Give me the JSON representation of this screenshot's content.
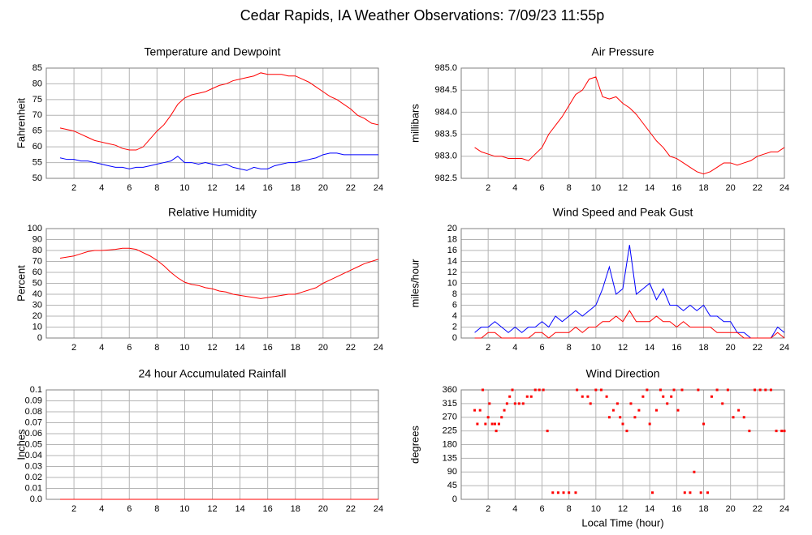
{
  "title": "Cedar Rapids, IA Weather Observations: 7/09/23 11:55p",
  "chart_data": [
    {
      "type": "line",
      "title": "Temperature and Dewpoint",
      "ylabel": "Fahrenheit",
      "xlim": [
        0,
        24
      ],
      "xticks": [
        2,
        4,
        6,
        8,
        10,
        12,
        14,
        16,
        18,
        20,
        22,
        24
      ],
      "ylim": [
        50,
        85
      ],
      "yticks": [
        50,
        55,
        60,
        65,
        70,
        75,
        80,
        85
      ],
      "grid": true,
      "x": [
        1,
        1.5,
        2,
        2.5,
        3,
        3.5,
        4,
        4.5,
        5,
        5.5,
        6,
        6.5,
        7,
        7.5,
        8,
        8.5,
        9,
        9.5,
        10,
        10.5,
        11,
        11.5,
        12,
        12.5,
        13,
        13.5,
        14,
        14.5,
        15,
        15.5,
        16,
        16.5,
        17,
        17.5,
        18,
        18.5,
        19,
        19.5,
        20,
        20.5,
        21,
        21.5,
        22,
        22.5,
        23,
        23.5,
        24
      ],
      "series": [
        {
          "color": "#ff0000",
          "values": [
            66,
            65.5,
            65,
            64,
            63,
            62,
            61.5,
            61,
            60.5,
            59.5,
            59,
            59,
            60,
            62.5,
            65,
            67,
            70,
            73.5,
            75.5,
            76.5,
            77,
            77.5,
            78.5,
            79.5,
            80,
            81,
            81.5,
            82,
            82.5,
            83.5,
            83,
            83,
            83,
            82.5,
            82.5,
            81.5,
            80.5,
            79,
            77.5,
            76,
            75,
            73.5,
            72,
            70,
            69,
            67.5,
            67
          ]
        },
        {
          "color": "#0000ff",
          "values": [
            56.5,
            56,
            56,
            55.5,
            55.5,
            55,
            54.5,
            54,
            53.5,
            53.5,
            53,
            53.5,
            53.5,
            54,
            54.5,
            55,
            55.5,
            57,
            55,
            55,
            54.5,
            55,
            54.5,
            54,
            54.5,
            53.5,
            53,
            52.5,
            53.5,
            53,
            53,
            54,
            54.5,
            55,
            55,
            55.5,
            56,
            56.5,
            57.5,
            58,
            58,
            57.5,
            57.5,
            57.5,
            57.5,
            57.5,
            57.5
          ]
        }
      ]
    },
    {
      "type": "line",
      "title": "Air Pressure",
      "ylabel": "millibars",
      "xlim": [
        0,
        24
      ],
      "xticks": [
        2,
        4,
        6,
        8,
        10,
        12,
        14,
        16,
        18,
        20,
        22,
        24
      ],
      "ylim": [
        982.5,
        985
      ],
      "yticks": [
        982.5,
        {
          "value": 983,
          "label": "983.0"
        },
        983.5,
        {
          "value": 984,
          "label": "984.0"
        },
        984.5,
        {
          "value": 985,
          "label": "985.0"
        }
      ],
      "grid": true,
      "x": [
        1,
        1.5,
        2,
        2.5,
        3,
        3.5,
        4,
        4.5,
        5,
        5.5,
        6,
        6.5,
        7,
        7.5,
        8,
        8.5,
        9,
        9.5,
        10,
        10.5,
        11,
        11.5,
        12,
        12.5,
        13,
        13.5,
        14,
        14.5,
        15,
        15.5,
        16,
        16.5,
        17,
        17.5,
        18,
        18.5,
        19,
        19.5,
        20,
        20.5,
        21,
        21.5,
        22,
        22.5,
        23,
        23.5,
        24
      ],
      "series": [
        {
          "color": "#ff0000",
          "values": [
            983.2,
            983.1,
            983.05,
            983.0,
            983.0,
            982.95,
            982.95,
            982.95,
            982.9,
            983.05,
            983.2,
            983.5,
            983.7,
            983.9,
            984.15,
            984.4,
            984.5,
            984.75,
            984.8,
            984.35,
            984.3,
            984.35,
            984.2,
            984.1,
            983.95,
            983.75,
            983.55,
            983.35,
            983.2,
            983.0,
            982.95,
            982.85,
            982.75,
            982.65,
            982.6,
            982.65,
            982.75,
            982.85,
            982.85,
            982.8,
            982.85,
            982.9,
            983.0,
            983.05,
            983.1,
            983.1,
            983.2
          ]
        }
      ]
    },
    {
      "type": "line",
      "title": "Relative Humidity",
      "ylabel": "Percent",
      "xlim": [
        0,
        24
      ],
      "xticks": [
        2,
        4,
        6,
        8,
        10,
        12,
        14,
        16,
        18,
        20,
        22,
        24
      ],
      "ylim": [
        0,
        100
      ],
      "yticks": [
        0,
        10,
        20,
        30,
        40,
        50,
        60,
        70,
        80,
        90,
        100
      ],
      "grid": true,
      "x": [
        1,
        1.5,
        2,
        2.5,
        3,
        3.5,
        4,
        4.5,
        5,
        5.5,
        6,
        6.5,
        7,
        7.5,
        8,
        8.5,
        9,
        9.5,
        10,
        10.5,
        11,
        11.5,
        12,
        12.5,
        13,
        13.5,
        14,
        14.5,
        15,
        15.5,
        16,
        16.5,
        17,
        17.5,
        18,
        18.5,
        19,
        19.5,
        20,
        20.5,
        21,
        21.5,
        22,
        22.5,
        23,
        23.5,
        24
      ],
      "series": [
        {
          "color": "#ff0000",
          "values": [
            73,
            74,
            75,
            77,
            79,
            80,
            80,
            80.5,
            81,
            82,
            82,
            81,
            78,
            75,
            71,
            66,
            60,
            55,
            51,
            49,
            48,
            46,
            45,
            43,
            42,
            40,
            39,
            38,
            37,
            36,
            37,
            38,
            39,
            40,
            40,
            42,
            44,
            46,
            50,
            53,
            56,
            59,
            62,
            65,
            68,
            70,
            72
          ]
        }
      ]
    },
    {
      "type": "line",
      "title": "Wind Speed and Peak Gust",
      "ylabel": "miles/hour",
      "xlim": [
        0,
        24
      ],
      "xticks": [
        2,
        4,
        6,
        8,
        10,
        12,
        14,
        16,
        18,
        20,
        22,
        24
      ],
      "ylim": [
        0,
        20
      ],
      "yticks": [
        0,
        2,
        4,
        6,
        8,
        10,
        12,
        14,
        16,
        18,
        20
      ],
      "grid": true,
      "x": [
        1,
        1.5,
        2,
        2.5,
        3,
        3.5,
        4,
        4.5,
        5,
        5.5,
        6,
        6.5,
        7,
        7.5,
        8,
        8.5,
        9,
        9.5,
        10,
        10.5,
        11,
        11.5,
        12,
        12.5,
        13,
        13.5,
        14,
        14.5,
        15,
        15.5,
        16,
        16.5,
        17,
        17.5,
        18,
        18.5,
        19,
        19.5,
        20,
        20.5,
        21,
        21.5,
        22,
        22.5,
        23,
        23.5,
        24
      ],
      "series": [
        {
          "color": "#0000ff",
          "values": [
            1,
            2,
            2,
            3,
            2,
            1,
            2,
            1,
            2,
            2,
            3,
            2,
            4,
            3,
            4,
            5,
            4,
            5,
            6,
            9,
            13,
            8,
            9,
            17,
            8,
            9,
            10,
            7,
            9,
            6,
            6,
            5,
            6,
            5,
            6,
            4,
            4,
            3,
            3,
            1,
            1,
            0,
            0,
            0,
            0,
            2,
            1
          ]
        },
        {
          "color": "#ff0000",
          "values": [
            0,
            0,
            1,
            1,
            0,
            0,
            0,
            0,
            0,
            1,
            1,
            0,
            1,
            1,
            1,
            2,
            1,
            2,
            2,
            3,
            3,
            4,
            3,
            5,
            3,
            3,
            3,
            4,
            3,
            3,
            2,
            3,
            2,
            2,
            2,
            2,
            1,
            1,
            1,
            1,
            0,
            0,
            0,
            0,
            0,
            1,
            0
          ]
        }
      ]
    },
    {
      "type": "line",
      "title": "24 hour Accumulated Rainfall",
      "ylabel": "Inches",
      "xlim": [
        0,
        24
      ],
      "xticks": [
        2,
        4,
        6,
        8,
        10,
        12,
        14,
        16,
        18,
        20,
        22,
        24
      ],
      "ylim": [
        0,
        0.1
      ],
      "yticks": [
        {
          "value": 0,
          "label": "0.0"
        },
        0.01,
        0.02,
        0.03,
        0.04,
        0.05,
        0.06,
        0.07,
        0.08,
        0.09,
        0.1
      ],
      "grid": true,
      "x": [
        1,
        24
      ],
      "series": [
        {
          "color": "#ff0000",
          "values": [
            0,
            0
          ]
        }
      ]
    },
    {
      "type": "scatter",
      "title": "Wind Direction",
      "ylabel": "degrees",
      "xlabel": "Local Time (hour)",
      "xlim": [
        0,
        24
      ],
      "xticks": [
        2,
        4,
        6,
        8,
        10,
        12,
        14,
        16,
        18,
        20,
        22,
        24
      ],
      "ylim": [
        0,
        360
      ],
      "yticks": [
        0,
        45,
        90,
        135,
        180,
        225,
        270,
        315,
        360
      ],
      "grid": true,
      "x": [
        1.0,
        1.2,
        1.4,
        1.6,
        1.8,
        2.0,
        2.1,
        2.3,
        2.5,
        2.6,
        2.8,
        3.0,
        3.2,
        3.4,
        3.6,
        3.8,
        4.0,
        4.3,
        4.6,
        4.9,
        5.2,
        5.5,
        5.8,
        6.1,
        6.4,
        6.8,
        7.2,
        7.6,
        8.0,
        8.5,
        8.6,
        9.0,
        9.4,
        9.6,
        10.0,
        10.4,
        10.8,
        11.0,
        11.3,
        11.6,
        11.8,
        12.0,
        12.3,
        12.6,
        12.9,
        13.2,
        13.5,
        13.8,
        14.0,
        14.2,
        14.5,
        14.8,
        15.0,
        15.3,
        15.6,
        15.8,
        16.1,
        16.4,
        16.6,
        17.0,
        17.3,
        17.6,
        17.8,
        18.0,
        18.3,
        18.6,
        19.0,
        19.4,
        19.8,
        20.2,
        20.6,
        21.0,
        21.4,
        21.8,
        22.2,
        22.6,
        23.0,
        23.4,
        23.8,
        24.0
      ],
      "series": [
        {
          "color": "#ff0000",
          "values": [
            293,
            248,
            293,
            360,
            248,
            270,
            315,
            248,
            248,
            225,
            248,
            270,
            293,
            315,
            338,
            360,
            315,
            315,
            315,
            338,
            338,
            360,
            360,
            360,
            225,
            22,
            22,
            22,
            22,
            22,
            360,
            338,
            338,
            315,
            360,
            360,
            338,
            270,
            293,
            315,
            270,
            248,
            225,
            315,
            270,
            293,
            338,
            360,
            248,
            22,
            293,
            360,
            338,
            315,
            338,
            360,
            293,
            360,
            22,
            22,
            90,
            360,
            22,
            248,
            22,
            338,
            360,
            315,
            360,
            270,
            293,
            270,
            225,
            360,
            360,
            360,
            360,
            225,
            225,
            225
          ]
        }
      ]
    }
  ]
}
